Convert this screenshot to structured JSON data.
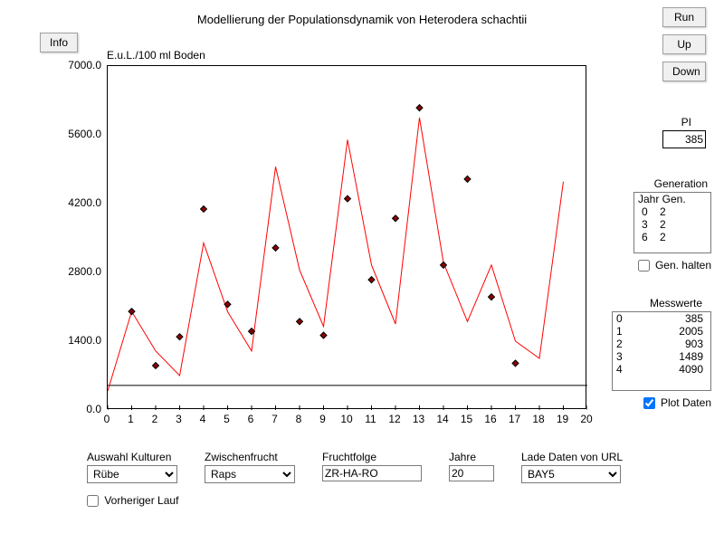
{
  "title": "Modellierung der Populationsdynamik von Heterodera schachtii",
  "buttons": {
    "info": "Info",
    "run": "Run",
    "up": "Up",
    "down": "Down"
  },
  "chart": {
    "type": "line+scatter",
    "ylabel": "E.u.L./100 ml Boden",
    "ylim": [
      0,
      7000
    ],
    "yticks": [
      0.0,
      1400.0,
      2800.0,
      4200.0,
      5600.0,
      7000.0
    ],
    "xlim": [
      0,
      20
    ],
    "xticks": [
      0,
      1,
      2,
      3,
      4,
      5,
      6,
      7,
      8,
      9,
      10,
      11,
      12,
      13,
      14,
      15,
      16,
      17,
      18,
      19,
      20
    ],
    "line_color": "#ff0000",
    "line_width": 1,
    "marker_fill": "#8b0000",
    "marker_stroke": "#000000",
    "marker_size": 7,
    "baseline_y": 500,
    "baseline_color": "#000000",
    "background_color": "#ffffff",
    "axis_color": "#000000",
    "line_data": [
      [
        0,
        385
      ],
      [
        1,
        2005
      ],
      [
        2,
        1200
      ],
      [
        3,
        700
      ],
      [
        4,
        3400
      ],
      [
        5,
        2000
      ],
      [
        6,
        1200
      ],
      [
        7,
        4950
      ],
      [
        8,
        2850
      ],
      [
        9,
        1700
      ],
      [
        10,
        5500
      ],
      [
        11,
        2950
      ],
      [
        12,
        1750
      ],
      [
        13,
        5950
      ],
      [
        14,
        3000
      ],
      [
        15,
        1800
      ],
      [
        16,
        2950
      ],
      [
        17,
        1400
      ],
      [
        18,
        1050
      ],
      [
        19,
        4650
      ]
    ],
    "scatter_data": [
      [
        1,
        2005
      ],
      [
        2,
        903
      ],
      [
        3,
        1489
      ],
      [
        4,
        4090
      ],
      [
        5,
        2150
      ],
      [
        6,
        1600
      ],
      [
        7,
        3300
      ],
      [
        8,
        1800
      ],
      [
        9,
        1520
      ],
      [
        10,
        4300
      ],
      [
        11,
        2650
      ],
      [
        12,
        3900
      ],
      [
        13,
        6150
      ],
      [
        14,
        2950
      ],
      [
        15,
        4700
      ],
      [
        16,
        2300
      ],
      [
        17,
        950
      ]
    ]
  },
  "pi": {
    "label": "PI",
    "value": "385"
  },
  "generation": {
    "label": "Generation",
    "header": "Jahr Gen.",
    "rows": [
      [
        "0",
        "2"
      ],
      [
        "3",
        "2"
      ],
      [
        "6",
        "2"
      ]
    ],
    "hold_label": "Gen. halten",
    "hold_checked": false
  },
  "messwerte": {
    "label": "Messwerte",
    "rows": [
      [
        "0",
        "385"
      ],
      [
        "1",
        "2005"
      ],
      [
        "2",
        "903"
      ],
      [
        "3",
        "1489"
      ],
      [
        "4",
        "4090"
      ]
    ]
  },
  "plot_daten": {
    "label": "Plot Daten",
    "checked": true
  },
  "bottom": {
    "kultur": {
      "label": "Auswahl Kulturen",
      "value": "Rübe"
    },
    "zwischen": {
      "label": "Zwischenfrucht",
      "value": "Raps"
    },
    "fruchtfolge": {
      "label": "Fruchtfolge",
      "value": "ZR-HA-RO"
    },
    "jahre": {
      "label": "Jahre",
      "value": "20"
    },
    "lade": {
      "label": "Lade Daten von URL",
      "value": "BAY5"
    }
  },
  "vorheriger": {
    "label": "Vorheriger Lauf",
    "checked": false
  }
}
